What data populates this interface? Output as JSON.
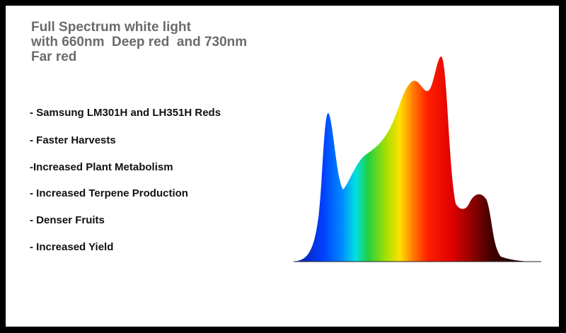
{
  "title": {
    "lines": [
      "Full Spectrum white light",
      "with 660nm  Deep red  and 730nm",
      "Far red"
    ]
  },
  "features": [
    "- Samsung LM301H and LH351H Reds",
    "- Faster Harvests",
    "-Increased Plant Metabolism",
    "- Increased Terpene Production",
    "- Denser Fruits",
    "- Increased Yield"
  ]
}
